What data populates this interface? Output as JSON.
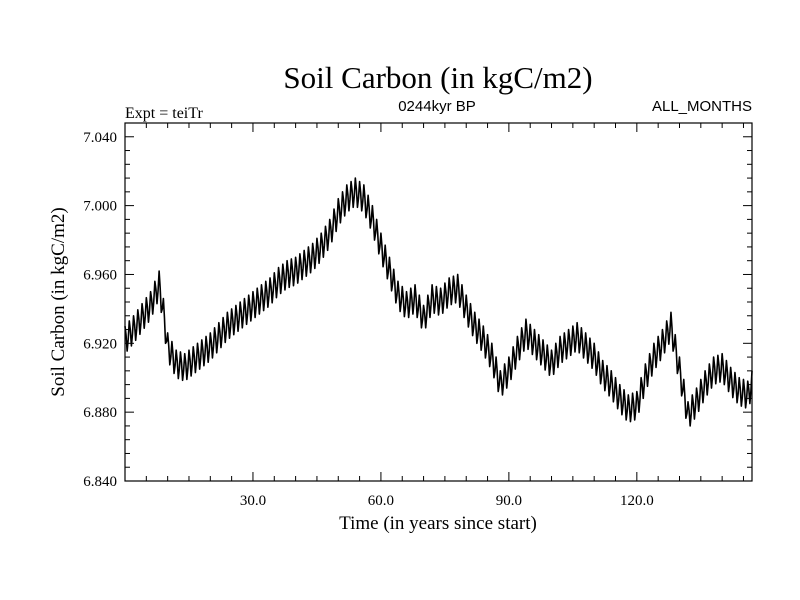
{
  "chart_data": {
    "type": "line",
    "title": "Soil Carbon (in kgC/m2)",
    "subtitle": "0244kyr BP",
    "left_label": "Expt = teiTr",
    "right_label": "ALL_MONTHS",
    "xlabel": "Time (in years since start)",
    "ylabel": "Soil Carbon (in kgC/m2)",
    "xlim": [
      0,
      147
    ],
    "ylim": [
      6.84,
      7.048
    ],
    "x_ticks": [
      30,
      60,
      90,
      120
    ],
    "x_tick_labels": [
      "30.0",
      "60.0",
      "90.0",
      "120.0"
    ],
    "y_ticks": [
      6.84,
      6.88,
      6.92,
      6.96,
      7.0,
      7.04
    ],
    "y_tick_labels": [
      "6.840",
      "6.880",
      "6.920",
      "6.960",
      "7.000",
      "7.040"
    ],
    "seasonal_amplitude": 0.008,
    "series": [
      {
        "name": "Soil Carbon",
        "color": "#000000",
        "x": [
          0,
          2,
          4,
          6,
          8,
          9,
          10,
          12,
          14,
          16,
          18,
          20,
          22,
          24,
          26,
          28,
          30,
          32,
          34,
          36,
          38,
          40,
          42,
          44,
          46,
          48,
          50,
          52,
          54,
          56,
          58,
          60,
          62,
          64,
          66,
          68,
          70,
          72,
          74,
          76,
          78,
          80,
          82,
          84,
          86,
          88,
          90,
          92,
          94,
          96,
          98,
          100,
          102,
          104,
          106,
          108,
          110,
          112,
          114,
          116,
          118,
          120,
          122,
          124,
          126,
          128,
          130,
          132,
          134,
          136,
          138,
          140,
          142,
          144,
          146,
          147
        ],
        "values": [
          6.922,
          6.928,
          6.935,
          6.942,
          6.954,
          6.938,
          6.918,
          6.908,
          6.906,
          6.91,
          6.914,
          6.918,
          6.924,
          6.93,
          6.934,
          6.938,
          6.942,
          6.946,
          6.95,
          6.956,
          6.96,
          6.962,
          6.966,
          6.97,
          6.976,
          6.984,
          6.996,
          7.004,
          7.008,
          7.004,
          6.992,
          6.976,
          6.962,
          6.948,
          6.942,
          6.946,
          6.934,
          6.946,
          6.944,
          6.95,
          6.952,
          6.94,
          6.93,
          6.922,
          6.912,
          6.896,
          6.904,
          6.916,
          6.926,
          6.92,
          6.914,
          6.908,
          6.916,
          6.92,
          6.924,
          6.918,
          6.912,
          6.902,
          6.896,
          6.888,
          6.882,
          6.884,
          6.9,
          6.912,
          6.92,
          6.93,
          6.904,
          6.878,
          6.886,
          6.896,
          6.904,
          6.906,
          6.898,
          6.892,
          6.89,
          6.896
        ],
        "samples_per_year": 4
      }
    ]
  }
}
